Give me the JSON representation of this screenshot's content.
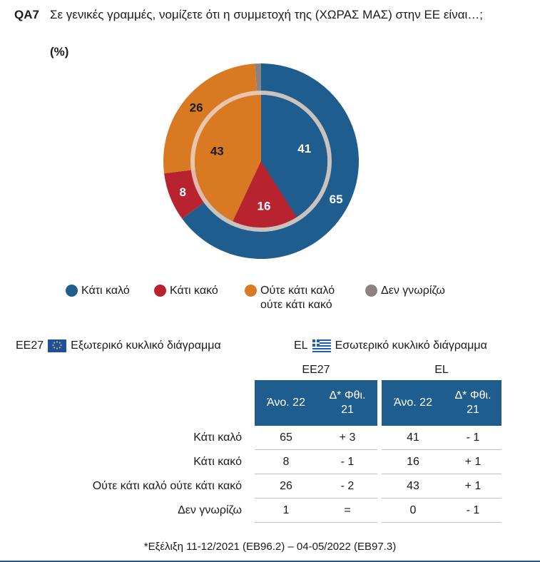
{
  "question": {
    "code": "QA7",
    "text": "Σε γενικές γραμμές, νομίζετε ότι η συμμετοχή της (ΧΩΡΑΣ ΜΑΣ) στην ΕΕ είναι…;",
    "unit": "(%)"
  },
  "chart_data": {
    "type": "pie",
    "title": "Σε γενικές γραμμές, νομίζετε ότι η συμμετοχή της (ΧΩΡΑΣ ΜΑΣ) στην ΕΕ είναι…;",
    "categories": [
      "Κάτι καλό",
      "Κάτι κακό",
      "Ούτε κάτι καλό ούτε κάτι κακό",
      "Δεν γνωρίζω"
    ],
    "colors": [
      "#1f5d8f",
      "#b8232f",
      "#d97a22",
      "#8c8282"
    ],
    "series": [
      {
        "name": "Εξωτερικό κυκλικό διάγραμμα",
        "ring": "outer",
        "values": [
          65,
          8,
          26,
          1
        ],
        "labels": [
          "65",
          "8",
          "26",
          ""
        ]
      },
      {
        "name": "Εσωτερικό κυκλικό διάγραμμα",
        "ring": "inner",
        "values": [
          41,
          16,
          43,
          0
        ],
        "labels": [
          "41",
          "16",
          "43",
          ""
        ]
      }
    ],
    "legend_position": "bottom"
  },
  "legend": [
    {
      "label": "Κάτι καλό",
      "color": "#1f5d8f"
    },
    {
      "label": "Κάτι κακό",
      "color": "#b8232f"
    },
    {
      "label": "Ούτε κάτι καλό",
      "label2": "ούτε κάτι κακό",
      "color": "#d97a22"
    },
    {
      "label": "Δεν γνωρίζω",
      "color": "#8c8282"
    }
  ],
  "key": {
    "outer_code": "EE27",
    "outer_text": "Εξωτερικό κυκλικό διάγραμμα",
    "inner_code": "EL",
    "inner_text": "Εσωτερικό κυκλικό διάγραμμα"
  },
  "table": {
    "group1": "EE27",
    "group2": "EL",
    "headers": [
      "Άνο. 22",
      "Δ* Φθι. 21",
      "Άνο. 22",
      "Δ* Φθι. 21"
    ],
    "header_lines": [
      [
        "Άνο. 22"
      ],
      [
        "Δ* Φθι.",
        "21"
      ],
      [
        "Άνο. 22"
      ],
      [
        "Δ* Φθι.",
        "21"
      ]
    ],
    "rows": [
      {
        "label": "Κάτι καλό",
        "values": [
          "65",
          "+ 3",
          "41",
          "- 1"
        ]
      },
      {
        "label": "Κάτι κακό",
        "values": [
          "8",
          "- 1",
          "16",
          "+ 1"
        ]
      },
      {
        "label": "Ούτε κάτι καλό ούτε κάτι κακό",
        "values": [
          "26",
          "- 2",
          "43",
          "+ 1"
        ]
      },
      {
        "label": "Δεν γνωρίζω",
        "values": [
          "1",
          "=",
          "0",
          "- 1"
        ]
      }
    ]
  },
  "footnote": "*Εξέλιξη 11-12/2021 (EB96.2) – 04-05/2022 (EB97.3)"
}
